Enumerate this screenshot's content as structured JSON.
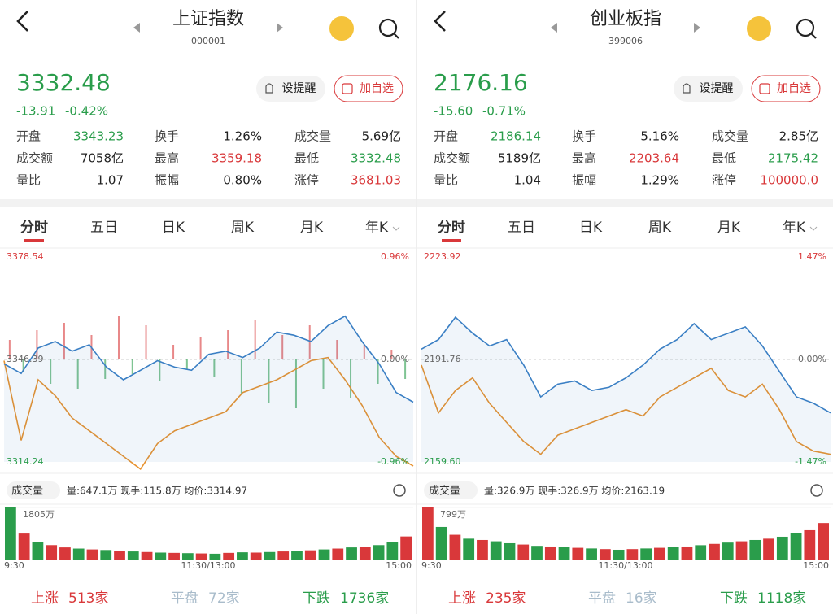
{
  "panels": [
    {
      "name": "上证指数",
      "code": "000001",
      "price": "3332.48",
      "change": "-13.91",
      "change_pct": "-0.42%",
      "buttons": [
        "设提醒",
        "加自选"
      ],
      "stats": [
        {
          "label": "开盘",
          "value": "3343.23",
          "color": "#2a9d4b"
        },
        {
          "label": "换手",
          "value": "1.26%",
          "color": "#222222"
        },
        {
          "label": "成交量",
          "value": "5.69亿",
          "color": "#222222"
        },
        {
          "label": "成交额",
          "value": "7058亿",
          "color": "#222222"
        },
        {
          "label": "最高",
          "value": "3359.18",
          "color": "#d9383a"
        },
        {
          "label": "最低",
          "value": "3332.48",
          "color": "#2a9d4b"
        },
        {
          "label": "量比",
          "value": "1.07",
          "color": "#222222"
        },
        {
          "label": "振幅",
          "value": "0.80%",
          "color": "#222222"
        },
        {
          "label": "涨停",
          "value": "3681.03",
          "color": "#d9383a"
        }
      ],
      "tabs": [
        "分时",
        "五日",
        "日K",
        "周K",
        "月K",
        "年K"
      ],
      "chart": {
        "top": {
          "value": 3378.54,
          "label": "3378.54"
        },
        "mid": {
          "value": 3346.39,
          "label": "3346.39"
        },
        "bottom": {
          "value": 3314.24,
          "label": "3314.24"
        },
        "top_pct": "0.96%",
        "mid_pct": "0.00%",
        "bottom_pct": "-0.96%",
        "price_color": "#3a7fc4",
        "avg_color": "#e8922e",
        "price": [
          3345,
          3342,
          3350,
          3352,
          3349,
          3351,
          3344,
          3340,
          3343,
          3346,
          3344,
          3343,
          3348,
          3349,
          3347,
          3350,
          3355,
          3354,
          3352,
          3357,
          3360,
          3352,
          3345,
          3336,
          3333
        ],
        "avg": [
          3346,
          3321,
          3340,
          3335,
          3328,
          3324,
          3320,
          3316,
          3312,
          3320,
          3324,
          3326,
          3328,
          3330,
          3336,
          3338,
          3340,
          3343,
          3346,
          3347,
          3340,
          3332,
          3322,
          3316,
          3313
        ],
        "breadth": [
          8,
          -5,
          12,
          -10,
          15,
          -12,
          10,
          -8,
          18,
          -6,
          14,
          -9,
          6,
          -4,
          9,
          -7,
          12,
          -14,
          16,
          -18,
          10,
          -20,
          14,
          -12,
          8,
          -16,
          6,
          -10,
          4,
          -8
        ]
      },
      "volume": {
        "label": "成交量",
        "info": "量:647.1万  现手:115.8万  均价:3314.97",
        "max": {
          "value": 1805,
          "label": "1805万"
        },
        "values": [
          1805,
          900,
          600,
          500,
          420,
          380,
          350,
          330,
          300,
          280,
          260,
          240,
          230,
          220,
          210,
          200,
          230,
          250,
          240,
          260,
          280,
          300,
          320,
          350,
          380,
          420,
          450,
          500,
          600,
          800
        ],
        "colors": [
          "#2a9d4b",
          "#d9383a",
          "#2a9d4b",
          "#d9383a",
          "#d9383a",
          "#2a9d4b",
          "#d9383a",
          "#2a9d4b",
          "#d9383a",
          "#2a9d4b",
          "#d9383a",
          "#2a9d4b",
          "#d9383a",
          "#2a9d4b",
          "#d9383a",
          "#2a9d4b",
          "#d9383a",
          "#2a9d4b",
          "#d9383a",
          "#2a9d4b",
          "#d9383a",
          "#2a9d4b",
          "#d9383a",
          "#2a9d4b",
          "#d9383a",
          "#2a9d4b",
          "#d9383a",
          "#2a9d4b",
          "#2a9d4b",
          "#d9383a"
        ]
      },
      "times": [
        "9:30",
        "11:30/13:00",
        "15:00"
      ],
      "footer": [
        {
          "label": "上涨",
          "value": "513家",
          "color": "#d9383a"
        },
        {
          "label": "平盘",
          "value": "72家",
          "color": "#a9bccb"
        },
        {
          "label": "下跌",
          "value": "1736家",
          "color": "#2a9d4b"
        }
      ]
    },
    {
      "name": "创业板指",
      "code": "399006",
      "price": "2176.16",
      "change": "-15.60",
      "change_pct": "-0.71%",
      "buttons": [
        "设提醒",
        "加自选"
      ],
      "stats": [
        {
          "label": "开盘",
          "value": "2186.14",
          "color": "#2a9d4b"
        },
        {
          "label": "换手",
          "value": "5.16%",
          "color": "#222222"
        },
        {
          "label": "成交量",
          "value": "2.85亿",
          "color": "#222222"
        },
        {
          "label": "成交额",
          "value": "5189亿",
          "color": "#222222"
        },
        {
          "label": "最高",
          "value": "2203.64",
          "color": "#d9383a"
        },
        {
          "label": "最低",
          "value": "2175.42",
          "color": "#2a9d4b"
        },
        {
          "label": "量比",
          "value": "1.04",
          "color": "#222222"
        },
        {
          "label": "振幅",
          "value": "1.29%",
          "color": "#222222"
        },
        {
          "label": "涨停",
          "value": "100000.0",
          "color": "#d9383a"
        }
      ],
      "tabs": [
        "分时",
        "五日",
        "日K",
        "周K",
        "月K",
        "年K"
      ],
      "chart": {
        "top": {
          "value": 2223.92,
          "label": "2223.92"
        },
        "mid": {
          "value": 2191.76,
          "label": "2191.76"
        },
        "bottom": {
          "value": 2159.6,
          "label": "2159.60"
        },
        "top_pct": "1.47%",
        "mid_pct": "0.00%",
        "bottom_pct": "-1.47%",
        "price_color": "#3a7fc4",
        "avg_color": "#e8922e",
        "price": [
          2195,
          2198,
          2205,
          2200,
          2196,
          2198,
          2190,
          2180,
          2184,
          2185,
          2182,
          2183,
          2186,
          2190,
          2195,
          2198,
          2203,
          2198,
          2200,
          2202,
          2196,
          2188,
          2180,
          2178,
          2175
        ],
        "avg": [
          2190,
          2175,
          2182,
          2186,
          2178,
          2172,
          2166,
          2162,
          2168,
          2170,
          2172,
          2174,
          2176,
          2174,
          2180,
          2183,
          2186,
          2189,
          2182,
          2180,
          2184,
          2176,
          2166,
          2163,
          2162
        ]
      },
      "volume": {
        "label": "成交量",
        "info": "量:326.9万  现手:326.9万  均价:2163.19",
        "max": {
          "value": 799,
          "label": "799万"
        },
        "values": [
          799,
          500,
          380,
          320,
          300,
          280,
          250,
          230,
          210,
          200,
          190,
          180,
          170,
          160,
          150,
          160,
          170,
          180,
          190,
          200,
          220,
          240,
          260,
          280,
          300,
          320,
          350,
          400,
          450,
          560
        ],
        "colors": [
          "#d9383a",
          "#2a9d4b",
          "#d9383a",
          "#2a9d4b",
          "#d9383a",
          "#2a9d4b",
          "#2a9d4b",
          "#d9383a",
          "#2a9d4b",
          "#d9383a",
          "#2a9d4b",
          "#d9383a",
          "#2a9d4b",
          "#d9383a",
          "#2a9d4b",
          "#d9383a",
          "#2a9d4b",
          "#d9383a",
          "#2a9d4b",
          "#d9383a",
          "#2a9d4b",
          "#d9383a",
          "#2a9d4b",
          "#d9383a",
          "#2a9d4b",
          "#d9383a",
          "#2a9d4b",
          "#2a9d4b",
          "#d9383a",
          "#d9383a"
        ]
      },
      "times": [
        "9:30",
        "11:30/13:00",
        "15:00"
      ],
      "footer": [
        {
          "label": "上涨",
          "value": "235家",
          "color": "#d9383a"
        },
        {
          "label": "平盘",
          "value": "16家",
          "color": "#a9bccb"
        },
        {
          "label": "下跌",
          "value": "1118家",
          "color": "#2a9d4b"
        }
      ]
    }
  ]
}
